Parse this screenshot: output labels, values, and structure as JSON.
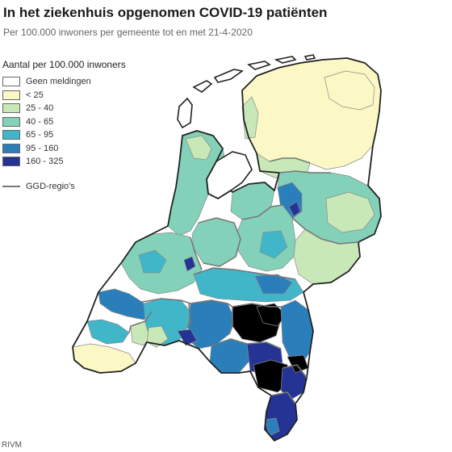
{
  "title": "In het ziekenhuis opgenomen COVID-19 patiënten",
  "subtitle": "Per 100.000 inwoners per gemeente tot en met 21-4-2020",
  "legend": {
    "title": "Aantal per 100.000 inwoners",
    "items": [
      {
        "label": "Geen meldingen",
        "color": "#ffffff"
      },
      {
        "label": "< 25",
        "color": "#fbf8c6"
      },
      {
        "label": "25 - 40",
        "color": "#c9e8b7"
      },
      {
        "label": "40 - 65",
        "color": "#83d1b9"
      },
      {
        "label": "65 - 95",
        "color": "#40b6c8"
      },
      {
        "label": "95 - 160",
        "color": "#2a7fba"
      },
      {
        "label": "160 - 325",
        "color": "#253494"
      }
    ],
    "boundary_label": "GGD-regio's",
    "boundary_color": "#777777"
  },
  "source": "RIVM"
}
